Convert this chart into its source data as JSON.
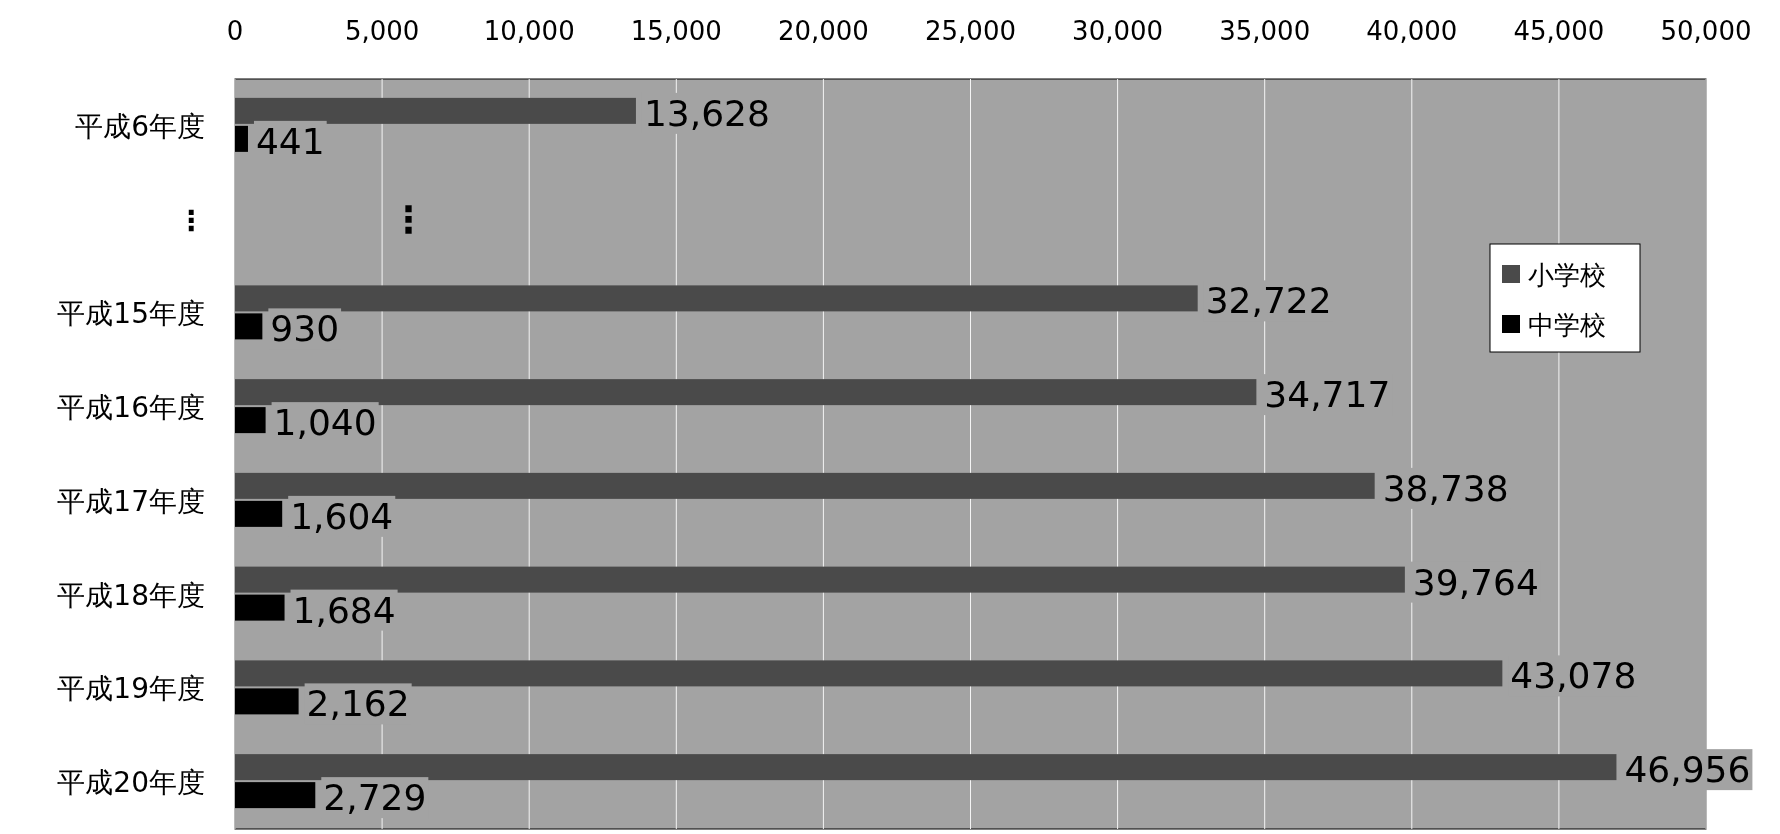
{
  "chart_data": {
    "type": "bar",
    "orientation": "horizontal",
    "categories": [
      "平成6年度",
      "⋮",
      "平成15年度",
      "平成16年度",
      "平成17年度",
      "平成18年度",
      "平成19年度",
      "平成20年度"
    ],
    "series": [
      {
        "name": "小学校",
        "color": "#4a4a4a",
        "values": [
          13628,
          null,
          32722,
          34717,
          38738,
          39764,
          43078,
          46956
        ],
        "value_labels": [
          "13,628",
          null,
          "32,722",
          "34,717",
          "38,738",
          "39,764",
          "43,078",
          "46,956"
        ]
      },
      {
        "name": "中学校",
        "color": "#000000",
        "values": [
          441,
          null,
          930,
          1040,
          1604,
          1684,
          2162,
          2729
        ],
        "value_labels": [
          "441",
          null,
          "930",
          "1,040",
          "1,604",
          "1,684",
          "2,162",
          "2,729"
        ]
      }
    ],
    "xlim": [
      0,
      50000
    ],
    "xticks": [
      0,
      {
        "value": 5000,
        "label": "5,000"
      },
      {
        "value": 10000,
        "label": "10,000"
      },
      {
        "value": 15000,
        "label": "15,000"
      },
      {
        "value": 20000,
        "label": "20,000"
      },
      {
        "value": 25000,
        "label": "25,000"
      },
      {
        "value": 30000,
        "label": "30,000"
      },
      {
        "value": 35000,
        "label": "35,000"
      },
      {
        "value": 40000,
        "label": "40,000"
      },
      {
        "value": 45000,
        "label": "45,000"
      },
      {
        "value": 50000,
        "label": "50,000"
      }
    ],
    "annotations": [
      "⋮"
    ],
    "grid": "x",
    "legend": "right"
  }
}
